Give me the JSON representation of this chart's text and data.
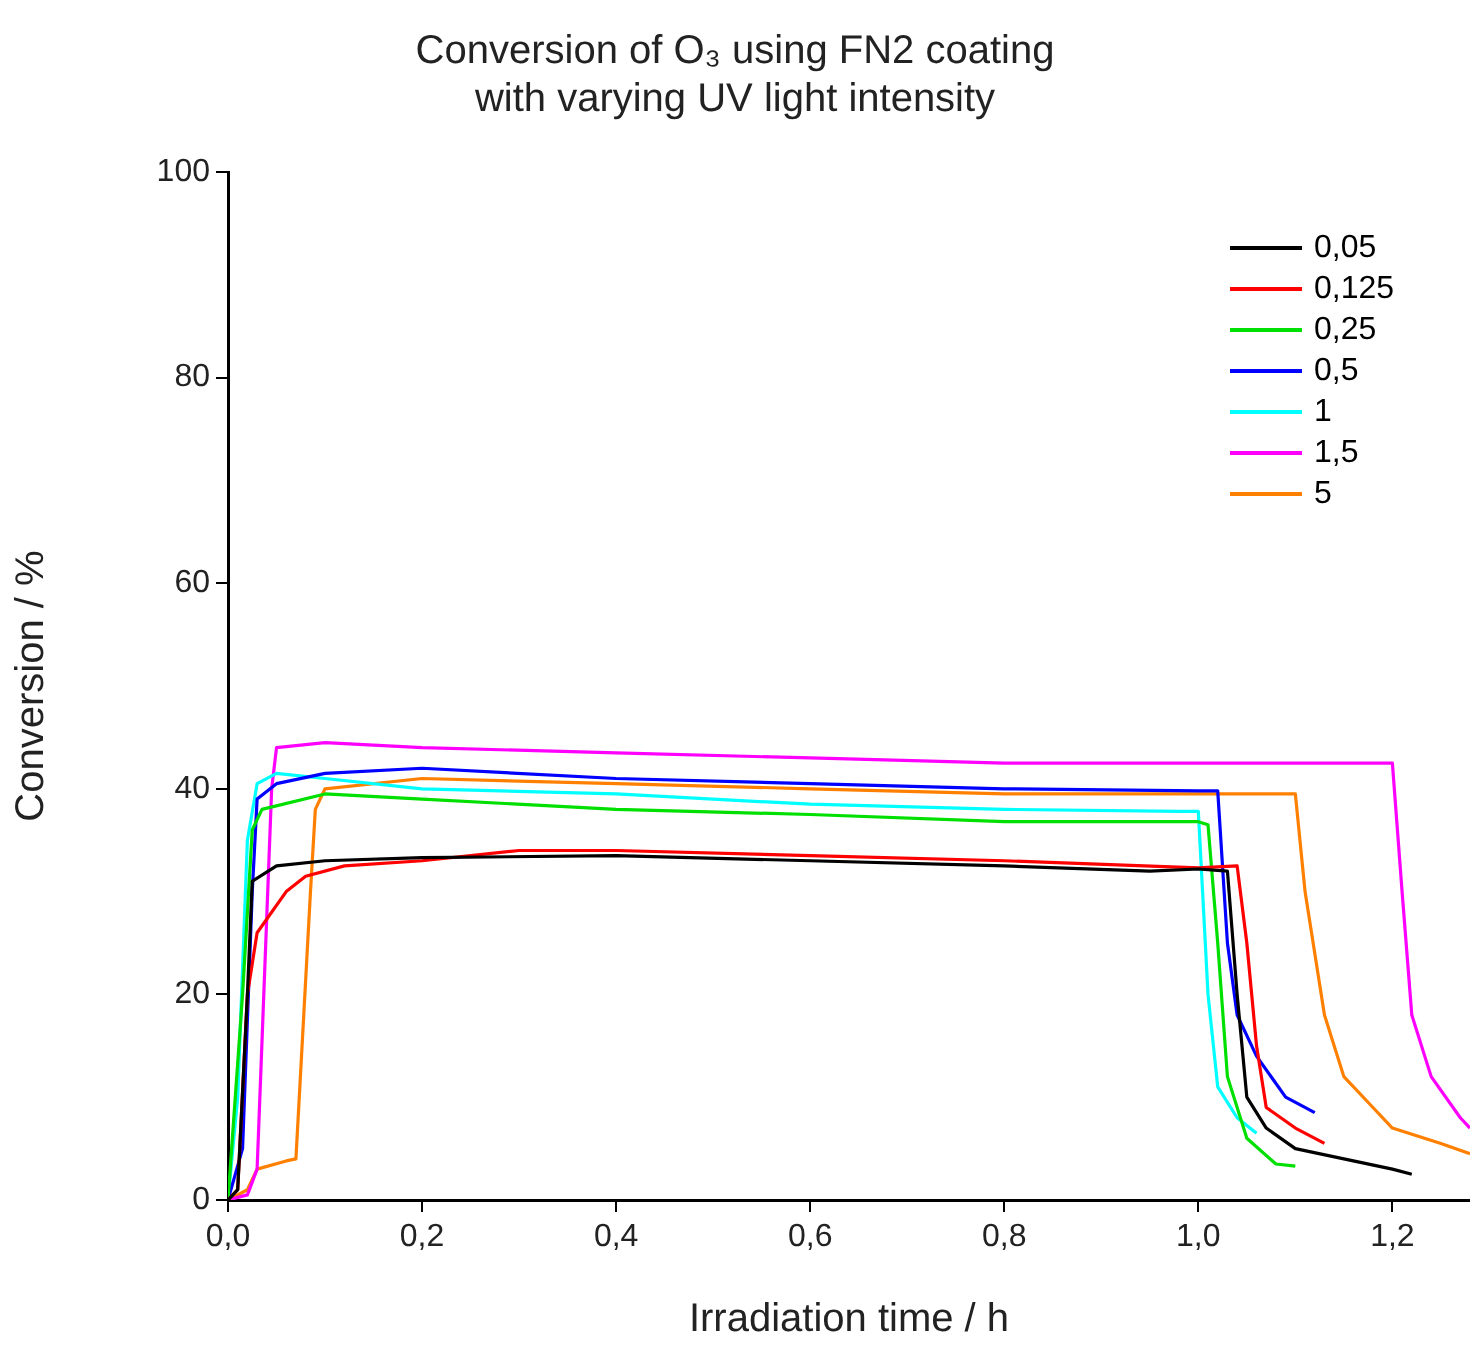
{
  "chart_data": {
    "type": "line",
    "title": "Conversion of O₃ using FN2 coating\nwith varying UV light intensity",
    "xlabel": "Irradiation time / h",
    "ylabel": "Conversion / %",
    "xlim": [
      0,
      1.28
    ],
    "xticks": [
      {
        "value": 0,
        "label": "0,0"
      },
      {
        "value": 0.2,
        "label": "0,2"
      },
      {
        "value": 0.4,
        "label": "0,4"
      },
      {
        "value": 0.6,
        "label": "0,6"
      },
      {
        "value": 0.8,
        "label": "0,8"
      },
      {
        "value": 1.0,
        "label": "1,0"
      },
      {
        "value": 1.2,
        "label": "1,2"
      }
    ],
    "ylim": [
      0,
      100
    ],
    "yticks": [
      0,
      20,
      40,
      60,
      80,
      100
    ],
    "grid": false,
    "legend": "top right",
    "marker": "none",
    "line_style": "solid",
    "series": [
      {
        "name": "0,05",
        "color": "#000000",
        "x": [
          0,
          0.01,
          0.02,
          0.025,
          0.05,
          0.1,
          0.2,
          0.4,
          0.6,
          0.8,
          0.95,
          1.0,
          1.03,
          1.04,
          1.05,
          1.07,
          1.1,
          1.15,
          1.2,
          1.22
        ],
        "values": [
          0,
          1,
          20,
          31,
          32.5,
          33,
          33.3,
          33.5,
          33,
          32.5,
          32,
          32.2,
          32,
          20,
          10,
          7,
          5,
          4,
          3,
          2.5
        ]
      },
      {
        "name": "0,125",
        "color": "#ff0000",
        "x": [
          0,
          0.01,
          0.02,
          0.03,
          0.06,
          0.08,
          0.12,
          0.2,
          0.3,
          0.4,
          0.6,
          0.8,
          1.0,
          1.04,
          1.05,
          1.06,
          1.07,
          1.1,
          1.13
        ],
        "values": [
          0,
          1,
          20,
          26,
          30,
          31.5,
          32.5,
          33,
          34,
          34,
          33.5,
          33,
          32.3,
          32.5,
          25,
          15,
          9,
          7,
          5.5
        ]
      },
      {
        "name": "0,25",
        "color": "#00e000",
        "x": [
          0,
          0.015,
          0.025,
          0.035,
          0.1,
          0.2,
          0.4,
          0.6,
          0.8,
          1.0,
          1.01,
          1.02,
          1.03,
          1.05,
          1.08,
          1.1
        ],
        "values": [
          0,
          20,
          36,
          38,
          39.5,
          39,
          38,
          37.5,
          36.8,
          36.8,
          36.5,
          25,
          12,
          6,
          3.5,
          3.3
        ]
      },
      {
        "name": "0,5",
        "color": "#0000ff",
        "x": [
          0,
          0.015,
          0.025,
          0.03,
          0.05,
          0.1,
          0.2,
          0.4,
          0.6,
          0.8,
          1.0,
          1.02,
          1.03,
          1.04,
          1.06,
          1.09,
          1.12
        ],
        "values": [
          0,
          5,
          30,
          39,
          40.5,
          41.5,
          42,
          41,
          40.5,
          40,
          39.8,
          39.8,
          25,
          18,
          14,
          10,
          8.5
        ]
      },
      {
        "name": "1",
        "color": "#00ffff",
        "x": [
          0,
          0.01,
          0.02,
          0.03,
          0.05,
          0.1,
          0.2,
          0.4,
          0.6,
          0.8,
          0.98,
          1.0,
          1.01,
          1.02,
          1.04,
          1.06
        ],
        "values": [
          0,
          10,
          35,
          40.5,
          41.5,
          41,
          40,
          39.5,
          38.5,
          38,
          37.8,
          37.8,
          20,
          11,
          8,
          6.5
        ]
      },
      {
        "name": "1,5",
        "color": "#ff00ff",
        "x": [
          0,
          0.02,
          0.03,
          0.045,
          0.05,
          0.1,
          0.2,
          0.4,
          0.6,
          0.8,
          1.0,
          1.2,
          1.21,
          1.22,
          1.24,
          1.27,
          1.28
        ],
        "values": [
          0,
          0.5,
          3,
          40,
          44,
          44.5,
          44,
          43.5,
          43,
          42.5,
          42.5,
          42.5,
          30,
          18,
          12,
          8,
          7
        ]
      },
      {
        "name": "5",
        "color": "#ff8000",
        "x": [
          0,
          0.02,
          0.03,
          0.06,
          0.07,
          0.085,
          0.09,
          0.1,
          0.2,
          0.4,
          0.6,
          0.8,
          1.0,
          1.1,
          1.11,
          1.13,
          1.15,
          1.18,
          1.2,
          1.25,
          1.28
        ],
        "values": [
          0,
          1,
          3,
          3.8,
          4,
          30,
          38,
          40,
          41,
          40.5,
          40,
          39.5,
          39.5,
          39.5,
          30,
          18,
          12,
          9,
          7,
          5.5,
          4.5
        ]
      }
    ]
  }
}
